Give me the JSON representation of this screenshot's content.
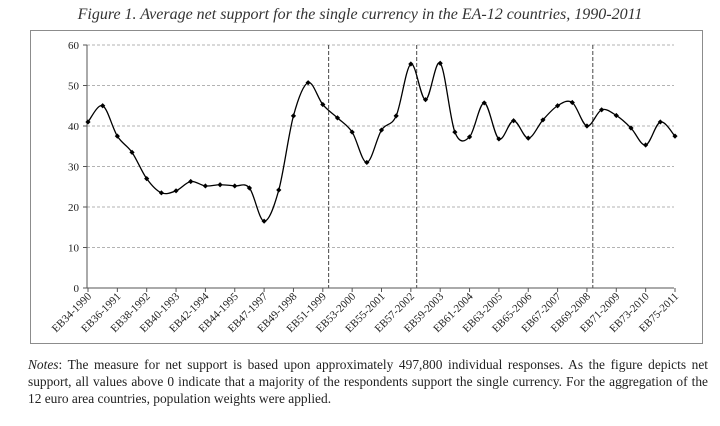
{
  "title": "Figure 1. Average net support for the single currency in the EA-12 countries, 1990-2011",
  "notes": {
    "label": "Notes",
    "text": ": The measure for net support is based upon approximately 497,800 individual responses. As the figure depicts net support, all values above 0 indicate that a majority of the respondents support the single currency. For the aggregation of the 12 euro area countries, population weights were applied."
  },
  "chart_data": {
    "type": "line",
    "title": "Figure 1. Average net support for the single currency in the EA-12 countries, 1990-2011",
    "xlabel": "",
    "ylabel": "",
    "ylim": [
      0,
      60
    ],
    "yticks": [
      0,
      10,
      20,
      30,
      40,
      50,
      60
    ],
    "grid": "horizontal dashed",
    "smoothed": true,
    "markers": "diamond",
    "x_tick_labels": [
      "EB34-1990",
      "EB36-1991",
      "EB38-1992",
      "EB40-1993",
      "EB42-1994",
      "EB44-1995",
      "EB47-1997",
      "EB49-1998",
      "EB51-1999",
      "EB53-2000",
      "EB55-2001",
      "EB57-2002",
      "EB59-2003",
      "EB61-2004",
      "EB63-2005",
      "EB65-2006",
      "EB67-2007",
      "EB69-2008",
      "EB71-2009",
      "EB73-2010",
      "EB75-2011"
    ],
    "series": [
      {
        "color": "#000000",
        "values": [
          41.0,
          45.0,
          37.5,
          33.5,
          27.0,
          23.5,
          24.0,
          26.3,
          25.2,
          25.5,
          25.2,
          24.7,
          16.5,
          24.2,
          42.5,
          50.7,
          45.3,
          42.0,
          38.5,
          31.0,
          39.0,
          42.5,
          55.3,
          46.5,
          55.5,
          38.5,
          37.3,
          45.7,
          36.8,
          41.3,
          37.0,
          41.5,
          45.0,
          45.8,
          40.0,
          44.0,
          42.6,
          39.5,
          35.3,
          41.0,
          37.5
        ]
      }
    ],
    "vertical_markers_after_tick": [
      "EB51-1999",
      "EB57-2002",
      "EB69-2008"
    ]
  }
}
